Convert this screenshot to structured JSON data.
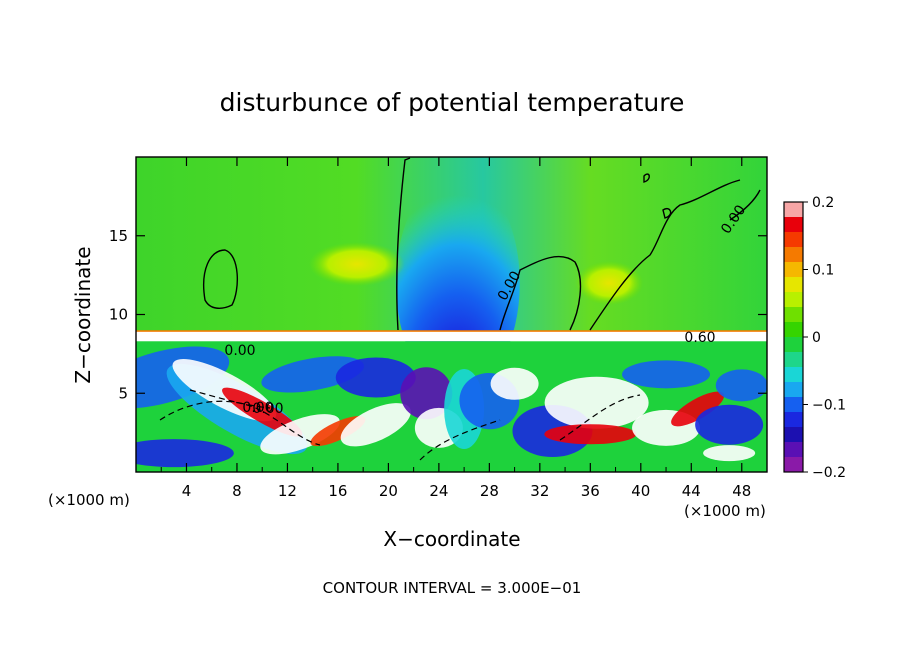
{
  "chart_data": {
    "type": "heatmap",
    "title": "disturbunce of potential temperature",
    "xlabel": "X−coordinate",
    "ylabel": "Z−coordinate",
    "x_unit": "(×1000 m)",
    "x_unit_right": "(×1000 m)",
    "xlim": [
      0,
      50
    ],
    "ylim": [
      0,
      20
    ],
    "x_ticks": [
      4,
      8,
      12,
      16,
      20,
      24,
      28,
      32,
      36,
      40,
      44,
      48
    ],
    "y_ticks": [
      5,
      10,
      15
    ],
    "colorbar": {
      "range": [
        -0.2,
        0.2
      ],
      "tick_values": [
        0.2,
        0.1,
        0,
        -0.1,
        -0.2
      ],
      "tick_labels": [
        "0.2",
        "0.1",
        "0",
        "−0.1",
        "−0.2"
      ],
      "colors": [
        "#f7a6a6",
        "#e8000b",
        "#f53a00",
        "#f57a00",
        "#f5b800",
        "#e6e600",
        "#b8f000",
        "#6fe000",
        "#35d400",
        "#1ed23c",
        "#1ed68a",
        "#1ad6d6",
        "#19a8f0",
        "#1560f0",
        "#1a28e0",
        "#1c10b0",
        "#5a10b4",
        "#8a1aa8"
      ]
    },
    "contour_labels": [
      "0.00",
      "0.00",
      "0.00",
      "0.60",
      "0.00",
      "0.00"
    ],
    "contour_interval_text": "CONTOUR INTERVAL = 3.000E−01",
    "grid": false
  }
}
